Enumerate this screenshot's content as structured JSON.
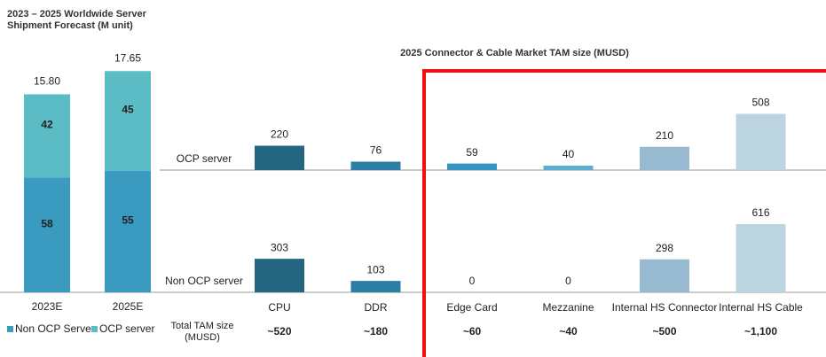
{
  "chart_data": [
    {
      "type": "stacked_bar",
      "title": "2023 – 2025 Worldwide Server Shipment Forecast (M unit)",
      "categories": [
        "2023E",
        "2025E"
      ],
      "values": [
        15.8,
        17.65
      ],
      "value_labels": [
        "15.80",
        "17.65"
      ],
      "series": [
        {
          "name": "Non OCP Server",
          "color": "#3a9abf",
          "values": [
            58,
            55
          ]
        },
        {
          "name": "OCP server",
          "color": "#5cbcc6",
          "values": [
            42,
            45
          ]
        }
      ]
    },
    {
      "type": "panel_bar",
      "title": "2025 Connector & Cable Market TAM size (MUSD)",
      "categories": [
        "CPU",
        "DDR",
        "Edge Card",
        "Mezzanine",
        "Internal HS Connector",
        "Internal HS Cable"
      ],
      "colors": [
        "#24667f",
        "#2c7ea4",
        "#3596c0",
        "#5aaed0",
        "#97bad1",
        "#bcd3e0"
      ],
      "series": [
        {
          "name": "OCP server",
          "values": [
            220,
            76,
            59,
            40,
            210,
            508
          ]
        },
        {
          "name": "Non OCP server",
          "values": [
            303,
            103,
            0,
            0,
            298,
            616
          ]
        }
      ],
      "total_title": "Total TAM size (MUSD)",
      "total_labels": [
        "~520",
        "~180",
        "~60",
        "~40",
        "~500",
        "~1,100"
      ]
    }
  ]
}
